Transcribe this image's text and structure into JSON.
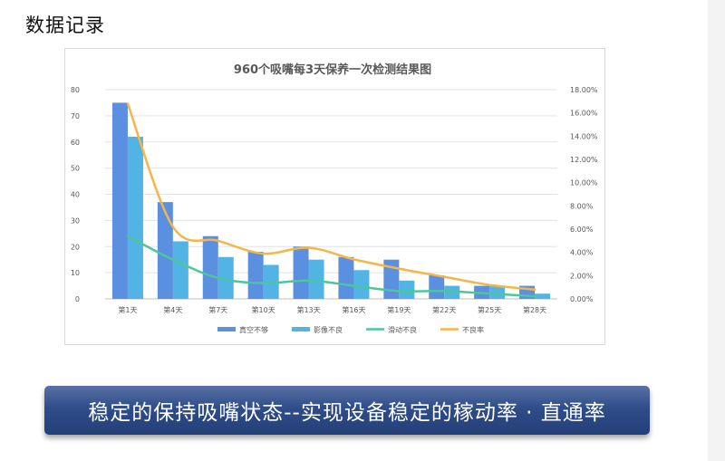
{
  "page": {
    "title": "数据记录",
    "banner": "稳定的保持吸嘴状态--实现设备稳定的稼动率 · 直通率"
  },
  "chart_data": {
    "type": "bar",
    "title": "960个吸嘴每3天保养一次检测结果图",
    "categories": [
      "第1天",
      "第4天",
      "第7天",
      "第10天",
      "第13天",
      "第16天",
      "第19天",
      "第22天",
      "第25天",
      "第28天"
    ],
    "y_left": {
      "min": 0,
      "max": 80,
      "ticks": [
        0,
        10,
        20,
        30,
        40,
        50,
        60,
        70,
        80
      ]
    },
    "y_right": {
      "min": 0,
      "max": 0.18,
      "ticks": [
        0,
        0.02,
        0.04,
        0.06,
        0.08,
        0.1,
        0.12,
        0.14,
        0.16,
        0.18
      ],
      "tick_labels": [
        "0.00%",
        "2.00%",
        "4.00%",
        "6.00%",
        "8.00%",
        "10.00%",
        "12.00%",
        "14.00%",
        "16.00%",
        "18.00%"
      ]
    },
    "series": [
      {
        "name": "真空不够",
        "kind": "bar",
        "axis": "left",
        "color": "#5b8fdf",
        "values": [
          75,
          37,
          24,
          18,
          20,
          16,
          15,
          9,
          5,
          5
        ]
      },
      {
        "name": "影像不良",
        "kind": "bar",
        "axis": "left",
        "color": "#52b3e5",
        "values": [
          62,
          22,
          16,
          13,
          15,
          11,
          7,
          5,
          5,
          2
        ]
      },
      {
        "name": "滑动不良",
        "kind": "line",
        "axis": "left",
        "color": "#4cc69a",
        "values": [
          24,
          15,
          8,
          6,
          7,
          5,
          3,
          3,
          2,
          1
        ]
      },
      {
        "name": "不良率",
        "kind": "line",
        "axis": "right",
        "color": "#f5b54a",
        "values": [
          0.168,
          0.062,
          0.05,
          0.039,
          0.044,
          0.034,
          0.026,
          0.019,
          0.012,
          0.008
        ]
      }
    ],
    "grid": true,
    "legend": "bottom"
  }
}
